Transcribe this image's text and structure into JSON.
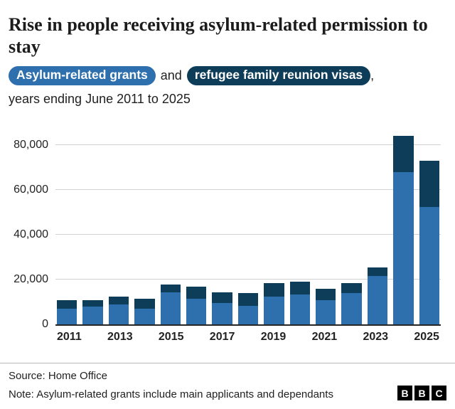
{
  "page": {
    "title": "Rise in people receiving asylum-related permission to stay",
    "subtitle": {
      "pill1": "Asylum-related grants",
      "connector": "and",
      "pill2": "refugee family reunion visas",
      "suffix": ",",
      "line2": "years ending June 2011 to 2025"
    }
  },
  "colors": {
    "grants": "#2e6fad",
    "reunion": "#0e3d59",
    "baseline": "#262626",
    "gridline": "#d2d2d2",
    "axis_text": "#222222",
    "logo_bg": "#000000"
  },
  "chart_data": {
    "type": "bar",
    "stacked": true,
    "title": "Rise in people receiving asylum-related permission to stay",
    "subtitle": "Asylum-related grants and refugee family reunion visas, years ending June 2011 to 2025",
    "categories": [
      2011,
      2012,
      2013,
      2014,
      2015,
      2016,
      2017,
      2018,
      2019,
      2020,
      2021,
      2022,
      2023,
      2024,
      2025
    ],
    "series": [
      {
        "name": "Asylum-related grants",
        "color_key": "grants",
        "values": [
          7000,
          8000,
          9000,
          7000,
          14500,
          11500,
          9500,
          8500,
          12500,
          13500,
          11000,
          14000,
          21500,
          68000,
          52500
        ]
      },
      {
        "name": "Refugee family reunion visas",
        "color_key": "reunion",
        "values": [
          4000,
          3000,
          3500,
          4500,
          3500,
          5500,
          5000,
          5500,
          6000,
          5500,
          5000,
          4500,
          4000,
          16000,
          20500
        ]
      }
    ],
    "ylim": [
      0,
      80000
    ],
    "yticks": [
      0,
      20000,
      40000,
      60000,
      80000
    ],
    "xtick_labels": [
      2011,
      2013,
      2015,
      2017,
      2019,
      2021,
      2023,
      2025
    ],
    "grid": true,
    "legend_position": "subtitle-pills"
  },
  "footer": {
    "source": "Source: Home Office",
    "note": "Note: Asylum-related grants include main applicants and dependants",
    "logo_letters": [
      "B",
      "B",
      "C"
    ]
  }
}
